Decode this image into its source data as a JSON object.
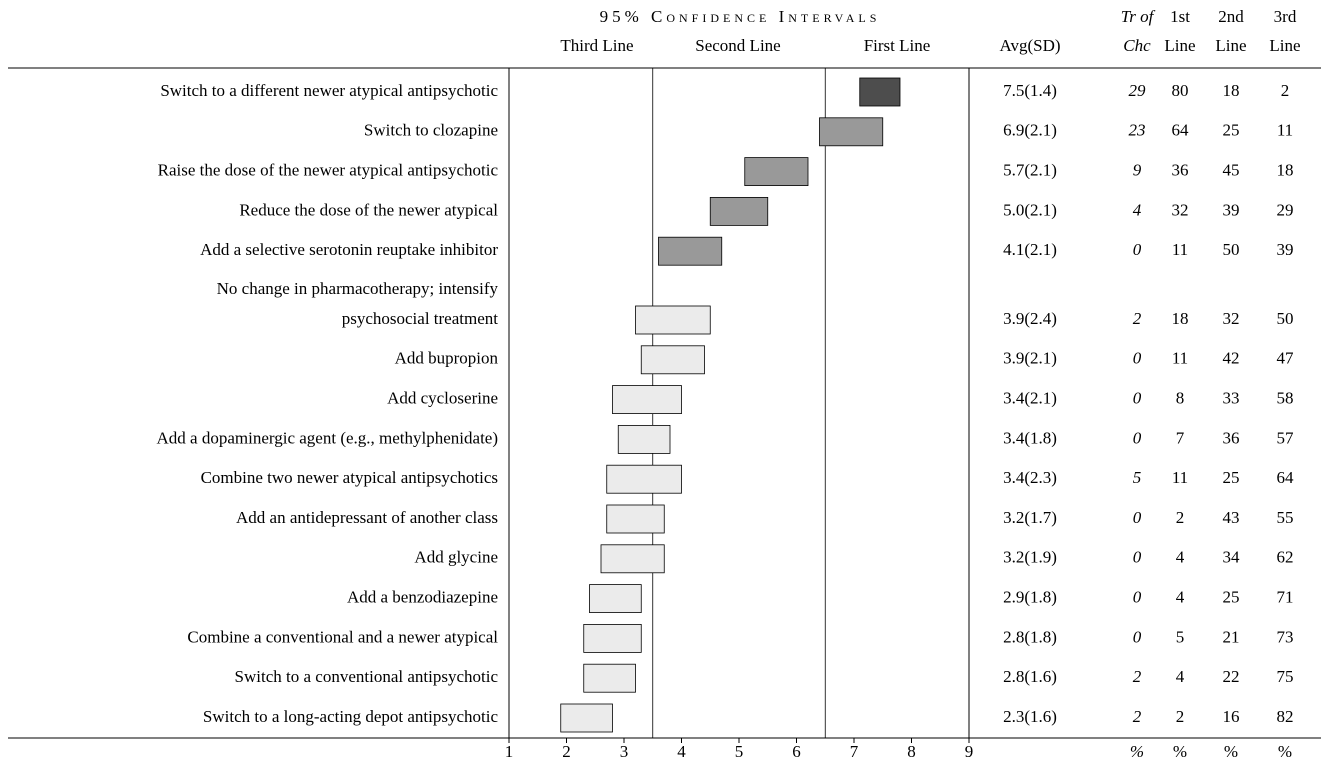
{
  "title": "95% Confidence Intervals",
  "bands": [
    {
      "label": "Third Line",
      "color": "#ebebeb"
    },
    {
      "label": "Second Line",
      "color": "#999999"
    },
    {
      "label": "First Line",
      "color": "#4d4d4d"
    }
  ],
  "boundaries": [
    3.5,
    6.5
  ],
  "xlim": [
    1,
    9
  ],
  "xticks": [
    1,
    2,
    3,
    4,
    5,
    6,
    7,
    8,
    9
  ],
  "columns": [
    [
      "Avg(SD)"
    ],
    [
      "Tr of",
      "Chc"
    ],
    [
      "1st",
      "Line"
    ],
    [
      "2nd",
      "Line"
    ],
    [
      "3rd",
      "Line"
    ]
  ],
  "units": [
    "%",
    "%",
    "%",
    "%"
  ],
  "rows": [
    {
      "label": [
        "Switch to a different newer atypical antipsychotic"
      ],
      "avg": "7.5(1.4)",
      "cells": [
        29,
        80,
        18,
        2
      ],
      "ci": [
        7.1,
        7.8
      ]
    },
    {
      "label": [
        "Switch to clozapine"
      ],
      "avg": "6.9(2.1)",
      "cells": [
        23,
        64,
        25,
        11
      ],
      "ci": [
        6.4,
        7.5
      ]
    },
    {
      "label": [
        "Raise the dose of the newer atypical antipsychotic"
      ],
      "avg": "5.7(2.1)",
      "cells": [
        9,
        36,
        45,
        18
      ],
      "ci": [
        5.1,
        6.2
      ]
    },
    {
      "label": [
        "Reduce the dose of the newer atypical"
      ],
      "avg": "5.0(2.1)",
      "cells": [
        4,
        32,
        39,
        29
      ],
      "ci": [
        4.5,
        5.5
      ]
    },
    {
      "label": [
        "Add a selective serotonin reuptake inhibitor"
      ],
      "avg": "4.1(2.1)",
      "cells": [
        0,
        11,
        50,
        39
      ],
      "ci": [
        3.6,
        4.7
      ]
    },
    {
      "label": [
        "No change in pharmacotherapy; intensify",
        "psychosocial treatment"
      ],
      "avg": "3.9(2.4)",
      "cells": [
        2,
        18,
        32,
        50
      ],
      "ci": [
        3.2,
        4.5
      ]
    },
    {
      "label": [
        "Add bupropion"
      ],
      "avg": "3.9(2.1)",
      "cells": [
        0,
        11,
        42,
        47
      ],
      "ci": [
        3.3,
        4.4
      ]
    },
    {
      "label": [
        "Add cycloserine"
      ],
      "avg": "3.4(2.1)",
      "cells": [
        0,
        8,
        33,
        58
      ],
      "ci": [
        2.8,
        4.0
      ]
    },
    {
      "label": [
        "Add a dopaminergic agent (e.g., methylphenidate)"
      ],
      "avg": "3.4(1.8)",
      "cells": [
        0,
        7,
        36,
        57
      ],
      "ci": [
        2.9,
        3.8
      ]
    },
    {
      "label": [
        "Combine two newer atypical antipsychotics"
      ],
      "avg": "3.4(2.3)",
      "cells": [
        5,
        11,
        25,
        64
      ],
      "ci": [
        2.7,
        4.0
      ]
    },
    {
      "label": [
        "Add an antidepressant of another class"
      ],
      "avg": "3.2(1.7)",
      "cells": [
        0,
        2,
        43,
        55
      ],
      "ci": [
        2.7,
        3.7
      ]
    },
    {
      "label": [
        "Add glycine"
      ],
      "avg": "3.2(1.9)",
      "cells": [
        0,
        4,
        34,
        62
      ],
      "ci": [
        2.6,
        3.7
      ]
    },
    {
      "label": [
        "Add a benzodiazepine"
      ],
      "avg": "2.9(1.8)",
      "cells": [
        0,
        4,
        25,
        71
      ],
      "ci": [
        2.4,
        3.3
      ]
    },
    {
      "label": [
        "Combine a conventional and a newer atypical"
      ],
      "avg": "2.8(1.8)",
      "cells": [
        0,
        5,
        21,
        73
      ],
      "ci": [
        2.3,
        3.3
      ]
    },
    {
      "label": [
        "Switch to a conventional antipsychotic"
      ],
      "avg": "2.8(1.6)",
      "cells": [
        2,
        4,
        22,
        75
      ],
      "ci": [
        2.3,
        3.2
      ]
    },
    {
      "label": [
        "Switch to a long-acting depot antipsychotic"
      ],
      "avg": "2.3(1.6)",
      "cells": [
        2,
        2,
        16,
        82
      ],
      "ci": [
        1.9,
        2.8
      ]
    }
  ]
}
